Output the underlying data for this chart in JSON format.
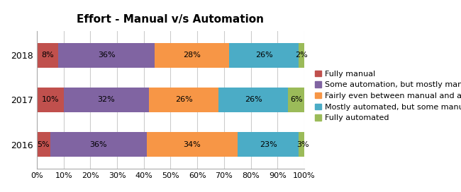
{
  "title": "Effort - Manual v/s Automation",
  "years": [
    "2018",
    "2017",
    "2016"
  ],
  "categories": [
    "Fully manual",
    "Some automation, but mostly manual",
    "Fairly even between manual and automated",
    "Mostly automated, but some manual",
    "Fully automated"
  ],
  "values": {
    "2018": [
      8,
      36,
      28,
      26,
      2
    ],
    "2017": [
      10,
      32,
      26,
      26,
      6
    ],
    "2016": [
      5,
      36,
      34,
      23,
      3
    ]
  },
  "colors": [
    "#C0504D",
    "#8064A2",
    "#F79646",
    "#4BACC6",
    "#9BBB59"
  ],
  "plot_bg_color": "#FFFFFF",
  "fig_bg_color": "#FFFFFF",
  "bar_height": 0.55,
  "title_fontsize": 11,
  "label_fontsize": 8,
  "legend_fontsize": 8,
  "tick_fontsize": 8,
  "ytick_fontsize": 9
}
